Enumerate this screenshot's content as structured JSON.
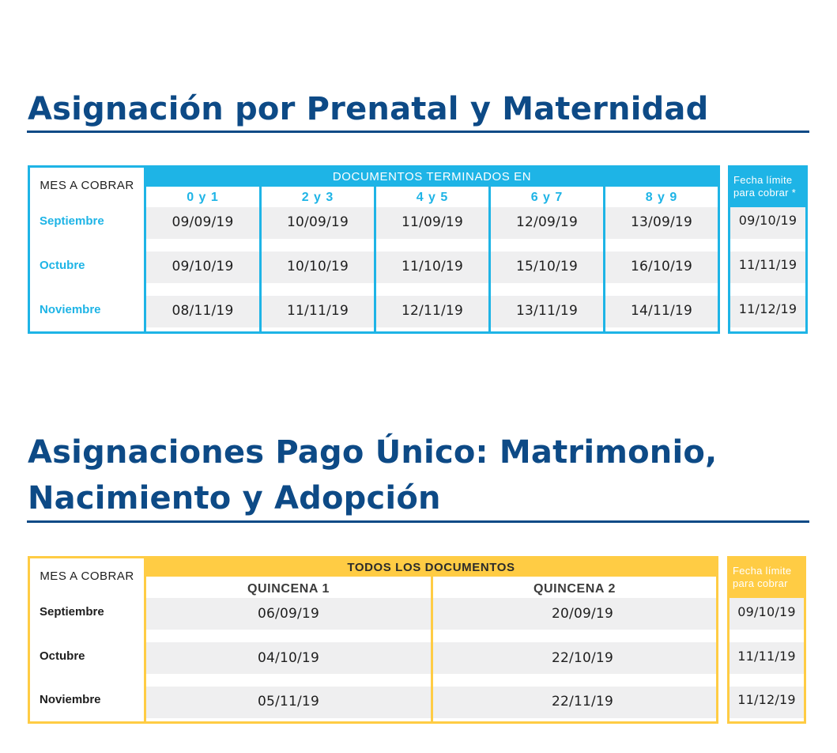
{
  "section1": {
    "title": "Asignación por Prenatal y Maternidad",
    "mes_header": "MES A COBRAR",
    "band_header": "DOCUMENTOS TERMINADOS EN",
    "columns": [
      "0 y 1",
      "2 y 3",
      "4 y 5",
      "6 y 7",
      "8 y 9"
    ],
    "rows": [
      {
        "mes": "Septiembre",
        "values": [
          "09/09/19",
          "10/09/19",
          "11/09/19",
          "12/09/19",
          "13/09/19"
        ]
      },
      {
        "mes": "Octubre",
        "values": [
          "09/10/19",
          "10/10/19",
          "11/10/19",
          "15/10/19",
          "16/10/19"
        ]
      },
      {
        "mes": "Noviembre",
        "values": [
          "08/11/19",
          "11/11/19",
          "12/11/19",
          "13/11/19",
          "14/11/19"
        ]
      }
    ],
    "limit_header_line1": "Fecha límite",
    "limit_header_line2": "para cobrar *",
    "limits": [
      "09/10/19",
      "11/11/19",
      "11/12/19"
    ],
    "accent": "#1eb4e6"
  },
  "section2": {
    "title_line1": "Asignaciones Pago Único: Matrimonio,",
    "title_line2": "Nacimiento y Adopción",
    "mes_header": "MES A COBRAR",
    "band_header": "TODOS LOS DOCUMENTOS",
    "columns": [
      "QUINCENA 1",
      "QUINCENA 2"
    ],
    "rows": [
      {
        "mes": "Septiembre",
        "values": [
          "06/09/19",
          "20/09/19"
        ]
      },
      {
        "mes": "Octubre",
        "values": [
          "04/10/19",
          "22/10/19"
        ]
      },
      {
        "mes": "Noviembre",
        "values": [
          "05/11/19",
          "22/11/19"
        ]
      }
    ],
    "limit_header_line1": "Fecha límite",
    "limit_header_line2": "para cobrar",
    "limits": [
      "09/10/19",
      "11/11/19",
      "11/12/19"
    ],
    "accent": "#ffcc44"
  },
  "title_color": "#0d4a86"
}
